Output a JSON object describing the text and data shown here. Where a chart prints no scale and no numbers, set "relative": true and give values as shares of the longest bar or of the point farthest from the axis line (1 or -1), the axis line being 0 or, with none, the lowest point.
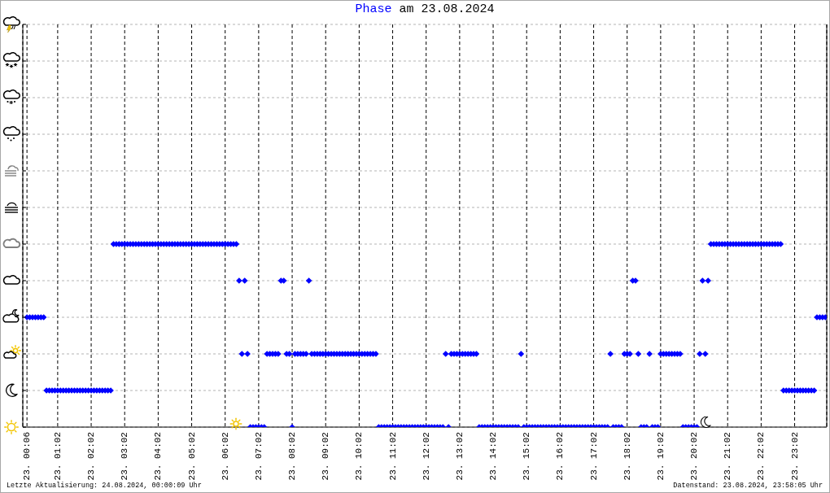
{
  "chart_data": {
    "type": "scatter",
    "title": "Phase am 23.08.2024",
    "relative": true,
    "color": "#0000ff",
    "marker": "diamond",
    "grid": true,
    "categories": [
      null,
      "23. 00:06",
      null,
      null,
      null,
      null,
      null,
      null,
      null,
      null,
      null,
      null,
      "23. 01:02",
      null,
      null,
      null,
      null,
      null,
      null,
      null,
      null,
      null,
      null,
      null,
      "23. 02:02",
      null,
      null,
      null,
      null,
      null,
      null,
      null,
      null,
      null,
      null,
      null,
      "23. 03:02",
      null,
      null,
      null,
      null,
      null,
      null,
      null,
      null,
      null,
      null,
      null,
      "23. 04:02",
      null,
      null,
      null,
      null,
      null,
      null,
      null,
      null,
      null,
      null,
      null,
      "23. 05:02",
      null,
      null,
      null,
      null,
      null,
      null,
      null,
      null,
      null,
      null,
      null,
      "23. 06:02",
      null,
      null,
      null,
      null,
      null,
      null,
      null,
      null,
      null,
      null,
      null,
      "23. 07:02",
      null,
      null,
      null,
      null,
      null,
      null,
      null,
      null,
      null,
      null,
      null,
      "23. 08:02",
      null,
      null,
      null,
      null,
      null,
      null,
      null,
      null,
      null,
      null,
      null,
      "23. 09:02",
      null,
      null,
      null,
      null,
      null,
      null,
      null,
      null,
      null,
      null,
      null,
      "23. 10:02",
      null,
      null,
      null,
      null,
      null,
      null,
      null,
      null,
      null,
      null,
      null,
      "23. 11:02",
      null,
      null,
      null,
      null,
      null,
      null,
      null,
      null,
      null,
      null,
      null,
      "23. 12:02",
      null,
      null,
      null,
      null,
      null,
      null,
      null,
      null,
      null,
      null,
      null,
      "23. 13:02",
      null,
      null,
      null,
      null,
      null,
      null,
      null,
      null,
      null,
      null,
      null,
      "23. 14:02",
      null,
      null,
      null,
      null,
      null,
      null,
      null,
      null,
      null,
      null,
      null,
      "23. 15:02",
      null,
      null,
      null,
      null,
      null,
      null,
      null,
      null,
      null,
      null,
      null,
      "23. 16:02",
      null,
      null,
      null,
      null,
      null,
      null,
      null,
      null,
      null,
      null,
      null,
      "23. 17:02",
      null,
      null,
      null,
      null,
      null,
      null,
      null,
      null,
      null,
      null,
      null,
      "23. 18:02",
      null,
      null,
      null,
      null,
      null,
      null,
      null,
      null,
      null,
      null,
      null,
      "23. 19:02",
      null,
      null,
      null,
      null,
      null,
      null,
      null,
      null,
      null,
      null,
      null,
      "23. 20:02",
      null,
      null,
      null,
      null,
      null,
      null,
      null,
      null,
      null,
      null,
      null,
      "23. 21:02",
      null,
      null,
      null,
      null,
      null,
      null,
      null,
      null,
      null,
      null,
      null,
      "23. 22:02",
      null,
      null,
      null,
      null,
      null,
      null,
      null,
      null,
      null,
      null,
      null,
      "23. 23:02",
      null,
      null,
      null,
      null,
      null,
      null,
      null,
      null,
      null,
      null,
      null
    ],
    "values": [
      null,
      0.6,
      0.6,
      0.6,
      0.6,
      0.6,
      0.6,
      0.6,
      0.2,
      0.2,
      0.2,
      0.2,
      0.2,
      0.2,
      0.2,
      0.2,
      0.2,
      0.2,
      0.2,
      0.2,
      0.2,
      0.2,
      0.2,
      0.2,
      0.2,
      0.2,
      0.2,
      0.2,
      0.2,
      0.2,
      0.2,
      0.2,
      1,
      1,
      1,
      1,
      1,
      1,
      1,
      1,
      1,
      1,
      1,
      1,
      1,
      1,
      1,
      1,
      1,
      1,
      1,
      1,
      1,
      1,
      1,
      1,
      1,
      1,
      1,
      1,
      1,
      1,
      1,
      1,
      1,
      1,
      1,
      1,
      1,
      1,
      1,
      1,
      1,
      1,
      1,
      1,
      1,
      0.8,
      0.4,
      0.8,
      0.4,
      0,
      0,
      0,
      0,
      0,
      0,
      0.4,
      0.4,
      0.4,
      0.4,
      0.4,
      0.8,
      0.8,
      0.4,
      0.4,
      0,
      0.4,
      0.4,
      0.4,
      0.4,
      0.4,
      0.8,
      0.4,
      0.4,
      0.4,
      0.4,
      0.4,
      0.4,
      0.4,
      0.4,
      0.4,
      0.4,
      0.4,
      0.4,
      0.4,
      0.4,
      0.4,
      0.4,
      0.4,
      0.4,
      0.4,
      0.4,
      0.4,
      0.4,
      0.4,
      0.4,
      0,
      0,
      0,
      0,
      0,
      0,
      0,
      0,
      0,
      0,
      0,
      0,
      0,
      0,
      0,
      0,
      0,
      0,
      0,
      0,
      0,
      0,
      0,
      0,
      0.4,
      0,
      0.4,
      0.4,
      0.4,
      0.4,
      0.4,
      0.4,
      0.4,
      0.4,
      0.4,
      0.4,
      0,
      0,
      0,
      0,
      0,
      0,
      0,
      0,
      0,
      0,
      0,
      0,
      0,
      0,
      0,
      0.4,
      0,
      0,
      0,
      0,
      0,
      0,
      0,
      0,
      0,
      0,
      0,
      0,
      0,
      0,
      0,
      0,
      0,
      0,
      0,
      0,
      0,
      0,
      0,
      0,
      0,
      0,
      0,
      0,
      0,
      0,
      0,
      0.4,
      0,
      0,
      0,
      0,
      0.4,
      0.4,
      0.4,
      0.8,
      0.8,
      0.4,
      0,
      0,
      0,
      0.4,
      0,
      0,
      0,
      0.4,
      0.4,
      0.4,
      0.4,
      0.4,
      0.4,
      0.4,
      0.4,
      0,
      0,
      0,
      0,
      0,
      0,
      0.4,
      0.8,
      0.4,
      0.8,
      1,
      1,
      1,
      1,
      1,
      1,
      1,
      1,
      1,
      1,
      1,
      1,
      1,
      1,
      1,
      1,
      1,
      1,
      1,
      1,
      1,
      1,
      1,
      1,
      1,
      1,
      0.2,
      0.2,
      0.2,
      0.2,
      0.2,
      0.2,
      0.2,
      0.2,
      0.2,
      0.2,
      0.2,
      0.2,
      0.6,
      0.6,
      0.6,
      0.6
    ],
    "annotations": [
      "Letzte Aktualisierung: 24.08.2024, 00:00:09 Uhr",
      "Datenstand: 23.08.2024, 23:58:05 Uhr"
    ]
  }
}
